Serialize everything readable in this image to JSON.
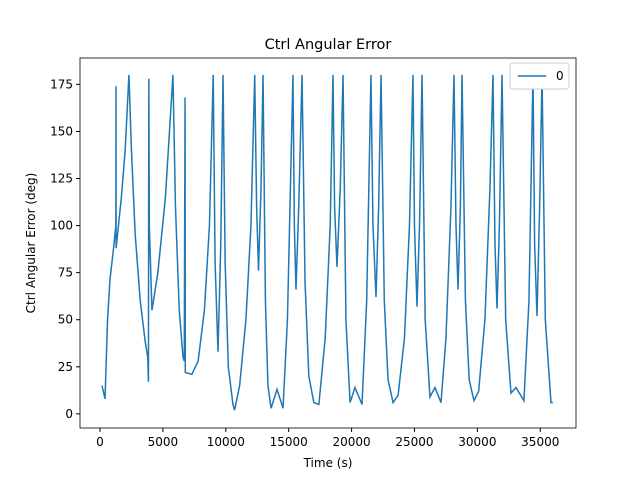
{
  "chart_data": {
    "type": "line",
    "title": "Ctrl Angular Error",
    "xlabel": "Time (s)",
    "ylabel": "Ctrl Angular Error (deg)",
    "x": [
      160,
      400,
      600,
      800,
      1030,
      1260,
      1270,
      1280,
      1700,
      2000,
      2300,
      2500,
      2800,
      3200,
      3600,
      3800,
      3850,
      3880,
      3920,
      4130,
      4600,
      5200,
      5800,
      6000,
      6300,
      6600,
      6700,
      6760,
      6780,
      7300,
      7800,
      8300,
      8700,
      9000,
      9150,
      9380,
      9600,
      9780,
      9950,
      10200,
      10570,
      10700,
      11100,
      11600,
      12000,
      12300,
      12450,
      12600,
      12800,
      12960,
      13150,
      13350,
      13600,
      14070,
      14550,
      14900,
      15340,
      15450,
      15580,
      15800,
      16060,
      16300,
      16600,
      17000,
      17400,
      17900,
      18300,
      18520,
      18650,
      18840,
      19100,
      19320,
      19550,
      19880,
      20270,
      20830,
      21200,
      21540,
      21700,
      21940,
      22150,
      22340,
      22600,
      22900,
      23300,
      23700,
      24200,
      24600,
      24880,
      25000,
      25200,
      25400,
      25600,
      25850,
      26230,
      26630,
      27110,
      27500,
      27900,
      28140,
      28300,
      28460,
      28650,
      28780,
      29050,
      29350,
      29730,
      30100,
      30600,
      31000,
      31240,
      31400,
      31560,
      31750,
      31960,
      32250,
      32670,
      33070,
      33700,
      34100,
      34420,
      34550,
      34740,
      34950,
      35140,
      35400,
      35850,
      36000
    ],
    "series": [
      {
        "name": "0",
        "color": "#1f77b4",
        "values": [
          15,
          8,
          50,
          72,
          85,
          100,
          174,
          88,
          115,
          140,
          180,
          140,
          95,
          60,
          38,
          30,
          17,
          178,
          100,
          55,
          75,
          115,
          180,
          110,
          55,
          30,
          28,
          168,
          22,
          21,
          28,
          55,
          100,
          180,
          80,
          33,
          90,
          180,
          80,
          25,
          5,
          2,
          15,
          50,
          100,
          180,
          110,
          76,
          120,
          180,
          60,
          15,
          3,
          13,
          3,
          50,
          180,
          100,
          66,
          110,
          180,
          70,
          20,
          6,
          5,
          40,
          100,
          180,
          110,
          78,
          120,
          180,
          50,
          6,
          14,
          5,
          60,
          180,
          100,
          62,
          110,
          180,
          60,
          18,
          6,
          10,
          40,
          100,
          180,
          100,
          57,
          100,
          180,
          50,
          9,
          14,
          6,
          40,
          110,
          180,
          100,
          66,
          110,
          180,
          60,
          18,
          7,
          12,
          50,
          120,
          180,
          90,
          56,
          100,
          180,
          50,
          11,
          14,
          7,
          60,
          180,
          90,
          52,
          110,
          180,
          50,
          6,
          6
        ]
      }
    ],
    "xlim": [
      -1590,
      37840
    ],
    "ylim": [
      -7.5,
      189
    ],
    "xticks": [
      0,
      5000,
      10000,
      15000,
      20000,
      25000,
      30000,
      35000
    ],
    "yticks": [
      0,
      25,
      50,
      75,
      100,
      125,
      150,
      175
    ],
    "legend": "upper right"
  }
}
